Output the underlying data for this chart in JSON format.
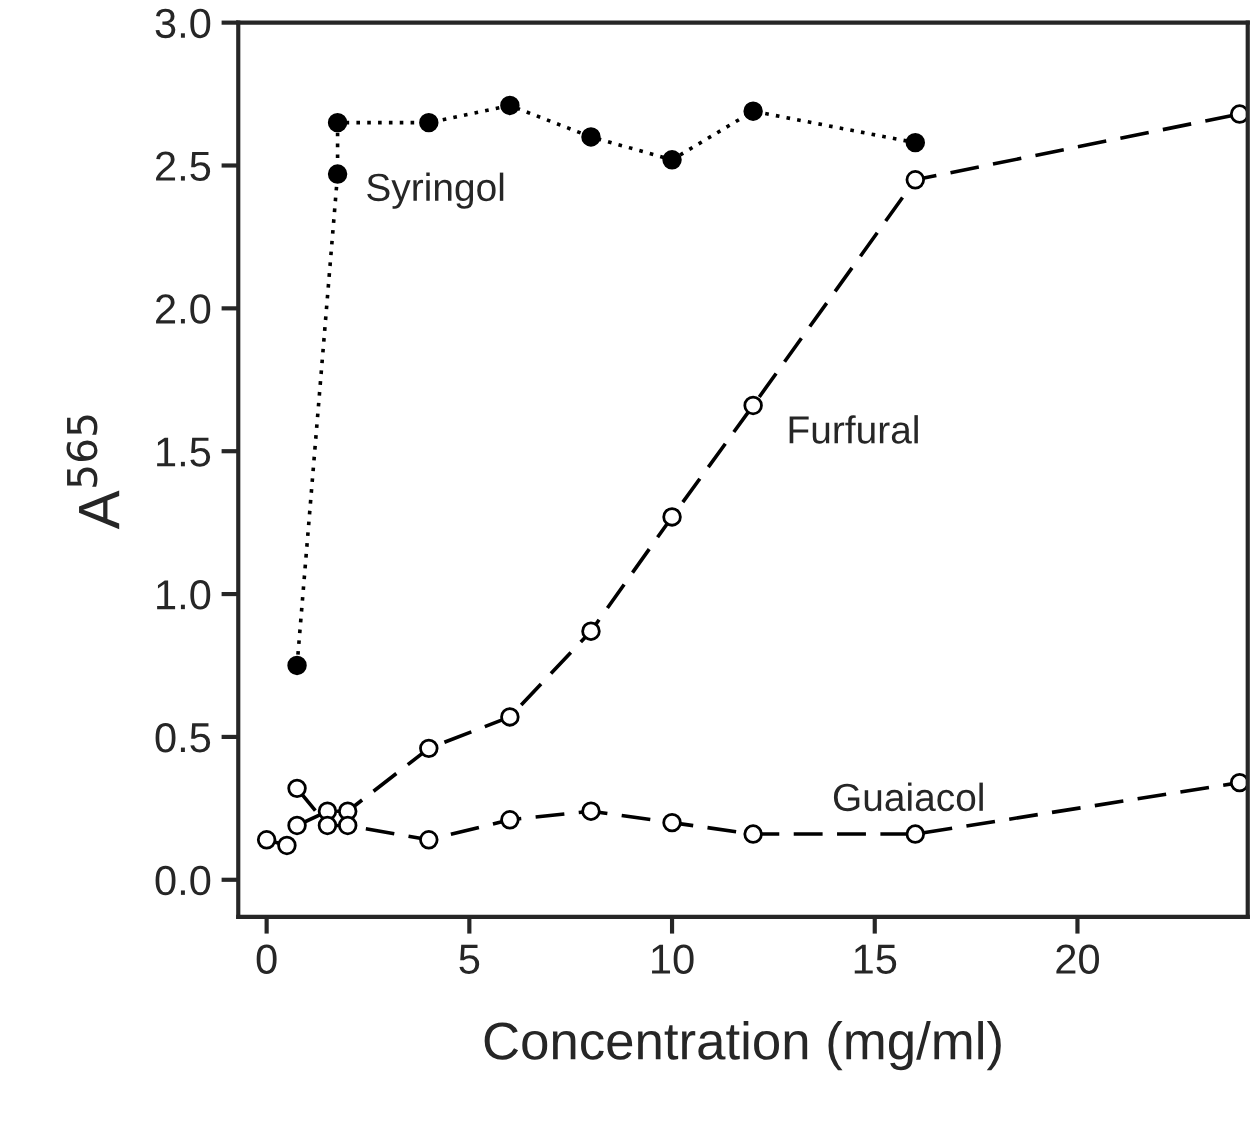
{
  "chart_data": {
    "type": "line",
    "xlabel": "Concentration (mg/ml)",
    "ylabel": "A$^{565}$",
    "xlim": [
      -0.7,
      24.2
    ],
    "xticks": [
      0,
      5,
      10,
      15,
      20
    ],
    "ylim": [
      -0.13,
      3.0
    ],
    "yticks": [
      {
        "value": 0,
        "label": "0.0"
      },
      0.5,
      {
        "value": 1,
        "label": "1.0"
      },
      1.5,
      {
        "value": 2,
        "label": "2.0"
      },
      2.5,
      {
        "value": 3,
        "label": "3.0"
      }
    ],
    "grid": false,
    "legend": false,
    "marker": "circle",
    "series": [
      {
        "name": "Syringol",
        "color": "#000000",
        "line_style": "dotted",
        "x": [
          0.75,
          1.75,
          1.75,
          4,
          6,
          8,
          10,
          12,
          16
        ],
        "values": [
          0.75,
          2.47,
          2.65,
          2.65,
          2.71,
          2.6,
          2.52,
          2.69,
          2.58
        ]
      },
      {
        "name": "Furfural",
        "color": "#000000",
        "line_style": "dashed",
        "x": [
          0,
          0.5,
          0.75,
          1.5,
          2,
          4,
          6,
          8,
          10,
          12,
          16,
          24
        ],
        "values": [
          0.14,
          0.12,
          0.19,
          0.24,
          0.24,
          0.46,
          0.57,
          0.87,
          1.27,
          1.66,
          2.45,
          2.68
        ]
      },
      {
        "name": "Guaiacol",
        "color": "#000000",
        "line_style": "dashed",
        "x": [
          0.75,
          1.5,
          2,
          4,
          6,
          8,
          10,
          12,
          16,
          24
        ],
        "values": [
          0.32,
          0.19,
          0.19,
          0.14,
          0.21,
          0.24,
          0.2,
          0.16,
          0.16,
          0.34
        ]
      }
    ]
  }
}
